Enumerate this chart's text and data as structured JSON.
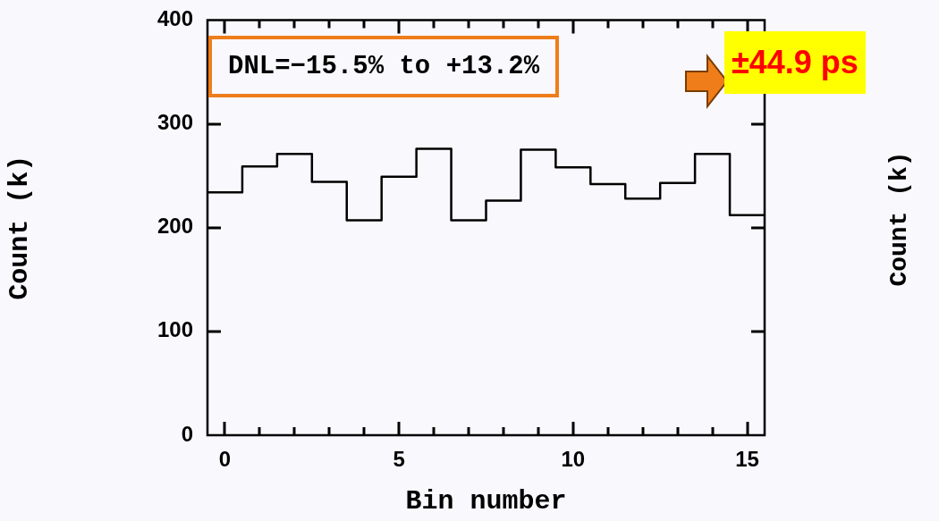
{
  "chart_data": {
    "type": "step",
    "xlabel": "Bin number",
    "ylabel": "Count (k)",
    "x": [
      -0.5,
      0.5,
      1.5,
      2.5,
      3.5,
      4.5,
      5.5,
      6.5,
      7.5,
      8.5,
      9.5,
      10.5,
      11.5,
      12.5,
      13.5,
      14.5,
      15.5
    ],
    "values": [
      234,
      259,
      271,
      244,
      207,
      249,
      276,
      207,
      226,
      275,
      258,
      242,
      228,
      243,
      271,
      212,
      212
    ],
    "color": "#000000",
    "xlim": [
      -0.5,
      15.5
    ],
    "xticks": [
      0,
      {
        "value": 1,
        "label": null
      },
      {
        "value": 2,
        "label": null
      },
      {
        "value": 3,
        "label": null
      },
      {
        "value": 4,
        "label": null
      },
      5,
      {
        "value": 6,
        "label": null
      },
      {
        "value": 7,
        "label": null
      },
      {
        "value": 8,
        "label": null
      },
      {
        "value": 9,
        "label": null
      },
      10,
      {
        "value": 11,
        "label": null
      },
      {
        "value": 12,
        "label": null
      },
      {
        "value": 13,
        "label": null
      },
      {
        "value": 14,
        "label": null
      },
      15
    ],
    "ylim": [
      0,
      400
    ],
    "yticks": [
      0,
      100,
      200,
      300,
      400
    ],
    "annotations": [
      "DNL=−15.5% to +13.2%",
      "±44.9 ps",
      "Count (k)"
    ]
  }
}
